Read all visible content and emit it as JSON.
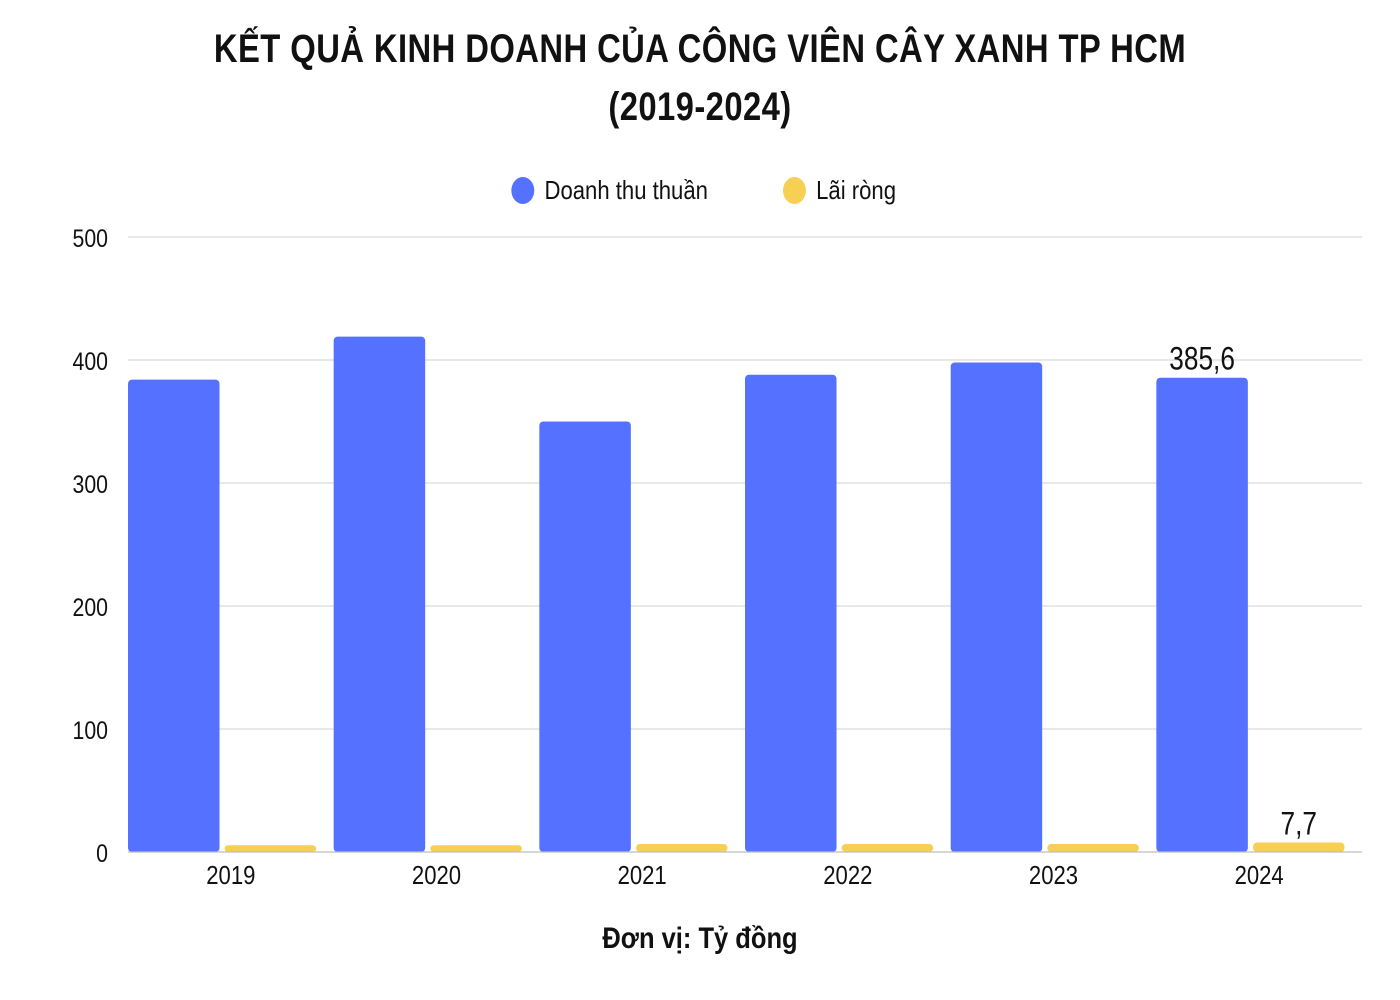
{
  "title_line1": "KẾT QUẢ KINH DOANH CỦA CÔNG VIÊN CÂY XANH TP HCM",
  "title_line2": "(2019-2024)",
  "unit_label": "Đơn vị: Tỷ đồng",
  "legend": [
    {
      "name": "Doanh thu thuần",
      "color": "#5571ff"
    },
    {
      "name": "Lãi ròng",
      "color": "#f7cf52"
    }
  ],
  "chart_data": {
    "type": "bar",
    "title": "KẾT QUẢ KINH DOANH CỦA CÔNG VIÊN CÂY XANH TP HCM (2019-2024)",
    "xlabel": "",
    "ylabel": "",
    "ylim": [
      0,
      500
    ],
    "yticks": [
      0,
      100,
      200,
      300,
      400,
      500
    ],
    "grid": true,
    "legend_position": "top-center",
    "categories": [
      "2019",
      "2020",
      "2021",
      "2022",
      "2023",
      "2024"
    ],
    "series": [
      {
        "name": "Doanh thu thuần",
        "color": "#5571ff",
        "values": [
          384,
          419,
          350,
          388,
          398,
          385.6
        ],
        "data_labels": [
          "",
          "",
          "",
          "",
          "",
          "385,6"
        ]
      },
      {
        "name": "Lãi ròng",
        "color": "#f7cf52",
        "values": [
          5.5,
          5.5,
          6.5,
          6.5,
          6.5,
          7.7
        ],
        "data_labels": [
          "",
          "",
          "",
          "",
          "",
          "7,7"
        ]
      }
    ]
  }
}
